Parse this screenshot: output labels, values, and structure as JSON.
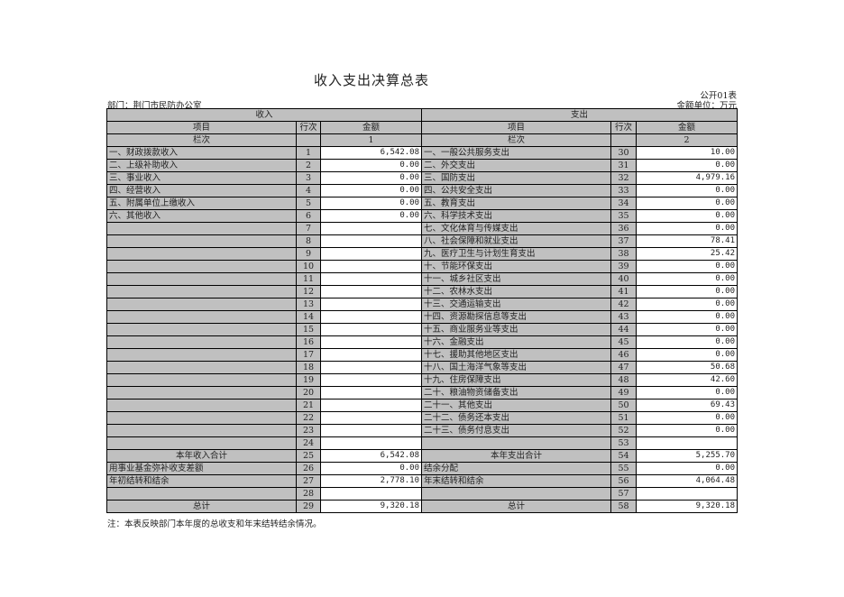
{
  "title": "收入支出决算总表",
  "form_code": "公开01表",
  "department": "部门：荆门市民防办公室",
  "unit": "金额单位：万元",
  "headers": {
    "income": "收入",
    "expense": "支出",
    "item": "项目",
    "row_no": "行次",
    "amount": "金额",
    "column_no": "栏次",
    "income_col": "1",
    "expense_col": "2"
  },
  "rows": [
    {
      "in_item": "一、财政拨款收入",
      "in_no": "1",
      "in_amt": "6,542.08",
      "ex_item": "一、一般公共服务支出",
      "ex_no": "30",
      "ex_amt": "10.00"
    },
    {
      "in_item": "二、上级补助收入",
      "in_no": "2",
      "in_amt": "0.00",
      "ex_item": "二、外交支出",
      "ex_no": "31",
      "ex_amt": "0.00"
    },
    {
      "in_item": "三、事业收入",
      "in_no": "3",
      "in_amt": "0.00",
      "ex_item": "三、国防支出",
      "ex_no": "32",
      "ex_amt": "4,979.16"
    },
    {
      "in_item": "四、经营收入",
      "in_no": "4",
      "in_amt": "0.00",
      "ex_item": "四、公共安全支出",
      "ex_no": "33",
      "ex_amt": "0.00"
    },
    {
      "in_item": "五、附属单位上缴收入",
      "in_no": "5",
      "in_amt": "0.00",
      "ex_item": "五、教育支出",
      "ex_no": "34",
      "ex_amt": "0.00"
    },
    {
      "in_item": "六、其他收入",
      "in_no": "6",
      "in_amt": "0.00",
      "ex_item": "六、科学技术支出",
      "ex_no": "35",
      "ex_amt": "0.00"
    },
    {
      "in_item": "",
      "in_no": "7",
      "in_amt": "",
      "ex_item": "七、文化体育与传媒支出",
      "ex_no": "36",
      "ex_amt": "0.00"
    },
    {
      "in_item": "",
      "in_no": "8",
      "in_amt": "",
      "ex_item": "八、社会保障和就业支出",
      "ex_no": "37",
      "ex_amt": "78.41"
    },
    {
      "in_item": "",
      "in_no": "9",
      "in_amt": "",
      "ex_item": "九、医疗卫生与计划生育支出",
      "ex_no": "38",
      "ex_amt": "25.42"
    },
    {
      "in_item": "",
      "in_no": "10",
      "in_amt": "",
      "ex_item": "十、节能环保支出",
      "ex_no": "39",
      "ex_amt": "0.00"
    },
    {
      "in_item": "",
      "in_no": "11",
      "in_amt": "",
      "ex_item": "十一、城乡社区支出",
      "ex_no": "40",
      "ex_amt": "0.00"
    },
    {
      "in_item": "",
      "in_no": "12",
      "in_amt": "",
      "ex_item": "十二、农林水支出",
      "ex_no": "41",
      "ex_amt": "0.00"
    },
    {
      "in_item": "",
      "in_no": "13",
      "in_amt": "",
      "ex_item": "十三、交通运输支出",
      "ex_no": "42",
      "ex_amt": "0.00"
    },
    {
      "in_item": "",
      "in_no": "14",
      "in_amt": "",
      "ex_item": "十四、资源勘探信息等支出",
      "ex_no": "43",
      "ex_amt": "0.00"
    },
    {
      "in_item": "",
      "in_no": "15",
      "in_amt": "",
      "ex_item": "十五、商业服务业等支出",
      "ex_no": "44",
      "ex_amt": "0.00"
    },
    {
      "in_item": "",
      "in_no": "16",
      "in_amt": "",
      "ex_item": "十六、金融支出",
      "ex_no": "45",
      "ex_amt": "0.00"
    },
    {
      "in_item": "",
      "in_no": "17",
      "in_amt": "",
      "ex_item": "十七、援助其他地区支出",
      "ex_no": "46",
      "ex_amt": "0.00"
    },
    {
      "in_item": "",
      "in_no": "18",
      "in_amt": "",
      "ex_item": "十八、国土海洋气象等支出",
      "ex_no": "47",
      "ex_amt": "50.68"
    },
    {
      "in_item": "",
      "in_no": "19",
      "in_amt": "",
      "ex_item": "十九、住房保障支出",
      "ex_no": "48",
      "ex_amt": "42.60"
    },
    {
      "in_item": "",
      "in_no": "20",
      "in_amt": "",
      "ex_item": "二十、粮油物资储备支出",
      "ex_no": "49",
      "ex_amt": "0.00"
    },
    {
      "in_item": "",
      "in_no": "21",
      "in_amt": "",
      "ex_item": "二十一、其他支出",
      "ex_no": "50",
      "ex_amt": "69.43"
    },
    {
      "in_item": "",
      "in_no": "22",
      "in_amt": "",
      "ex_item": "二十二、债务还本支出",
      "ex_no": "51",
      "ex_amt": "0.00"
    },
    {
      "in_item": "",
      "in_no": "23",
      "in_amt": "",
      "ex_item": "二十三、债务付息支出",
      "ex_no": "52",
      "ex_amt": "0.00"
    },
    {
      "in_item": "",
      "in_no": "24",
      "in_amt": "",
      "ex_item": "",
      "ex_no": "53",
      "ex_amt": ""
    },
    {
      "in_item": "本年收入合计",
      "in_no": "25",
      "in_amt": "6,542.08",
      "ex_item": "本年支出合计",
      "ex_no": "54",
      "ex_amt": "5,255.70",
      "center": true
    },
    {
      "in_item": "用事业基金弥补收支差额",
      "in_no": "26",
      "in_amt": "0.00",
      "ex_item": "结余分配",
      "ex_no": "55",
      "ex_amt": "0.00"
    },
    {
      "in_item": "年初结转和结余",
      "in_no": "27",
      "in_amt": "2,778.10",
      "ex_item": "年末结转和结余",
      "ex_no": "56",
      "ex_amt": "4,064.48"
    },
    {
      "in_item": "",
      "in_no": "28",
      "in_amt": "",
      "ex_item": "",
      "ex_no": "57",
      "ex_amt": ""
    },
    {
      "in_item": "总计",
      "in_no": "29",
      "in_amt": "9,320.18",
      "ex_item": "总计",
      "ex_no": "58",
      "ex_amt": "9,320.18",
      "center": true
    }
  ],
  "note": "注：本表反映部门本年度的总收支和年末结转结余情况。",
  "colors": {
    "header_fill": "#c0c0c0",
    "amount_fill": "#ffffff"
  }
}
